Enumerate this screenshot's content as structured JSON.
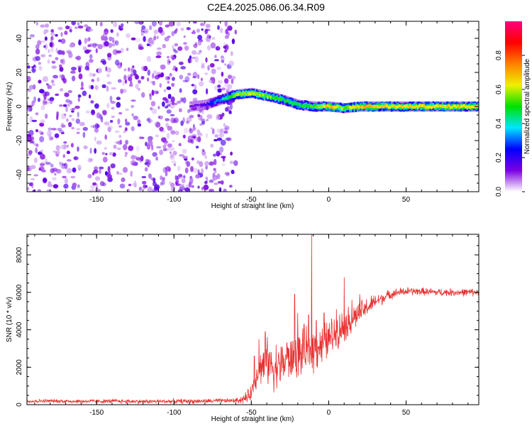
{
  "title": "C2E4.2025.086.06.34.R09",
  "chart_data": [
    {
      "type": "heatmap",
      "title": "C2E4.2025.086.06.34.R09",
      "xlabel": "Height of straight line (km)",
      "ylabel": "Frequency (Hz)",
      "xlim": [
        -195,
        97
      ],
      "ylim": [
        -50,
        50
      ],
      "xticks": [
        -150,
        -100,
        -50,
        0,
        50
      ],
      "yticks": [
        -40,
        -20,
        0,
        20,
        40
      ],
      "colorbar": {
        "label": "Normalized spectral amplitude",
        "range": [
          0,
          1
        ],
        "ticks": [
          0.0,
          0.2,
          0.4,
          0.6,
          0.8
        ],
        "colormap": [
          "#ffffff",
          "#7b00e0",
          "#0000ff",
          "#00e5ff",
          "#00e000",
          "#f0f000",
          "#ff8000",
          "#ff0000",
          "#ff0080"
        ]
      },
      "noise_region_x": [
        -195,
        -60
      ],
      "noise_amplitude": 0.15,
      "ridge": [
        {
          "x": -90,
          "f": 0,
          "a": 0.15
        },
        {
          "x": -80,
          "f": 1,
          "a": 0.25
        },
        {
          "x": -70,
          "f": 4,
          "a": 0.45
        },
        {
          "x": -60,
          "f": 7,
          "a": 0.7
        },
        {
          "x": -50,
          "f": 8,
          "a": 0.75
        },
        {
          "x": -40,
          "f": 6,
          "a": 0.7
        },
        {
          "x": -30,
          "f": 4,
          "a": 0.6
        },
        {
          "x": -20,
          "f": 1,
          "a": 0.6
        },
        {
          "x": -10,
          "f": 0,
          "a": 0.65
        },
        {
          "x": 0,
          "f": 0,
          "a": 0.85
        },
        {
          "x": 10,
          "f": -1,
          "a": 0.7
        },
        {
          "x": 20,
          "f": 0,
          "a": 0.85
        },
        {
          "x": 40,
          "f": 0,
          "a": 0.8
        },
        {
          "x": 60,
          "f": 0,
          "a": 0.8
        },
        {
          "x": 80,
          "f": 0,
          "a": 0.8
        },
        {
          "x": 97,
          "f": 0,
          "a": 0.8
        }
      ]
    },
    {
      "type": "line",
      "xlabel": "Height of straight line (km)",
      "ylabel": "SNR (10 * v/v)",
      "xlim": [
        -195,
        97
      ],
      "ylim": [
        0,
        9100
      ],
      "xticks": [
        -150,
        -100,
        -50,
        0,
        50
      ],
      "yticks": [
        0,
        2000,
        4000,
        6000,
        8000
      ],
      "color": "#e83030",
      "series": [
        {
          "points": [
            [
              -195,
              190
            ],
            [
              -180,
              200
            ],
            [
              -160,
              180
            ],
            [
              -140,
              190
            ],
            [
              -120,
              170
            ],
            [
              -100,
              180
            ],
            [
              -80,
              190
            ],
            [
              -60,
              220
            ],
            [
              -55,
              300
            ],
            [
              -52,
              450
            ],
            [
              -50,
              700
            ],
            [
              -48,
              1200
            ],
            [
              -46,
              1800
            ],
            [
              -44,
              2000
            ],
            [
              -42,
              2200
            ],
            [
              -40,
              2300
            ],
            [
              -35,
              2000
            ],
            [
              -30,
              2100
            ],
            [
              -25,
              2400
            ],
            [
              -20,
              2600
            ],
            [
              -15,
              2800
            ],
            [
              -10,
              3000
            ],
            [
              -5,
              3200
            ],
            [
              0,
              3500
            ],
            [
              5,
              3900
            ],
            [
              10,
              4200
            ],
            [
              15,
              4600
            ],
            [
              20,
              4900
            ],
            [
              25,
              5200
            ],
            [
              30,
              5500
            ],
            [
              35,
              5700
            ],
            [
              40,
              5900
            ],
            [
              45,
              6000
            ],
            [
              50,
              6050
            ],
            [
              60,
              6050
            ],
            [
              70,
              6000
            ],
            [
              80,
              6000
            ],
            [
              90,
              6000
            ],
            [
              97,
              6000
            ]
          ],
          "spikes": [
            [
              -48,
              2600
            ],
            [
              -45,
              3500
            ],
            [
              -41,
              3900
            ],
            [
              -38,
              2800
            ],
            [
              -34,
              3200
            ],
            [
              -30,
              3100
            ],
            [
              -27,
              3300
            ],
            [
              -22,
              5900
            ],
            [
              -20,
              4900
            ],
            [
              -16,
              4300
            ],
            [
              -13,
              4800
            ],
            [
              -11,
              9100
            ],
            [
              -8,
              4500
            ],
            [
              -3,
              4900
            ],
            [
              5,
              5100
            ],
            [
              10,
              6800
            ],
            [
              15,
              5600
            ],
            [
              20,
              5900
            ]
          ],
          "noise_band": [
            [
              -195,
              120
            ],
            [
              -60,
              150
            ],
            [
              -50,
              500
            ],
            [
              -40,
              1500
            ],
            [
              -30,
              1400
            ],
            [
              -20,
              1400
            ],
            [
              -10,
              1500
            ],
            [
              0,
              1300
            ],
            [
              10,
              1100
            ],
            [
              20,
              800
            ],
            [
              30,
              500
            ],
            [
              40,
              300
            ],
            [
              60,
              250
            ],
            [
              97,
              250
            ]
          ]
        }
      ]
    }
  ]
}
